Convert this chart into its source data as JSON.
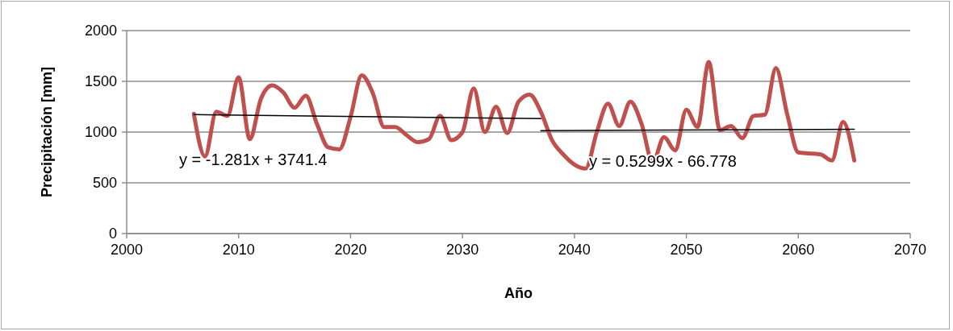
{
  "chart_data": {
    "type": "line",
    "xlabel": "Año",
    "ylabel": "Precipitación [mm]",
    "x": [
      2006,
      2007,
      2008,
      2009,
      2010,
      2011,
      2012,
      2013,
      2014,
      2015,
      2016,
      2017,
      2018,
      2019,
      2020,
      2021,
      2022,
      2023,
      2024,
      2025,
      2026,
      2027,
      2028,
      2029,
      2030,
      2031,
      2032,
      2033,
      2034,
      2035,
      2036,
      2037,
      2038,
      2039,
      2040,
      2041,
      2042,
      2043,
      2044,
      2045,
      2046,
      2047,
      2048,
      2049,
      2050,
      2051,
      2052,
      2053,
      2054,
      2055,
      2056,
      2057,
      2058,
      2059,
      2060,
      2061,
      2062,
      2063,
      2064,
      2065
    ],
    "series": [
      {
        "color": "#c0504d",
        "values": [
          1180,
          760,
          1200,
          1160,
          1540,
          930,
          1330,
          1460,
          1390,
          1240,
          1360,
          1080,
          850,
          830,
          1150,
          1560,
          1380,
          1050,
          1050,
          970,
          900,
          930,
          1160,
          920,
          1000,
          1430,
          1000,
          1250,
          990,
          1300,
          1370,
          1200,
          920,
          780,
          680,
          640,
          1000,
          1280,
          1060,
          1300,
          1080,
          700,
          950,
          820,
          1220,
          1050,
          1690,
          1020,
          1060,
          940,
          1160,
          1170,
          1630,
          1180,
          800,
          790,
          780,
          720,
          1100,
          720
        ]
      },
      {
        "type": "line",
        "color": "#000000",
        "x": [
          2006,
          2037
        ],
        "values": [
          1172,
          1132
        ]
      },
      {
        "type": "line",
        "color": "#000000",
        "x": [
          2037,
          2065
        ],
        "values": [
          1014,
          1028
        ]
      }
    ],
    "annotations": [
      "y = -1.281x + 3741.4",
      "y = 0.5299x - 66.778"
    ],
    "xlim": [
      2000,
      2070
    ],
    "xticks": [
      2000,
      2010,
      2020,
      2030,
      2040,
      2050,
      2060,
      2070
    ],
    "ylim": [
      0,
      2000
    ],
    "yticks": [
      0,
      500,
      1000,
      1500,
      2000
    ],
    "grid": "y",
    "marker": "none",
    "line_style": "solid"
  }
}
